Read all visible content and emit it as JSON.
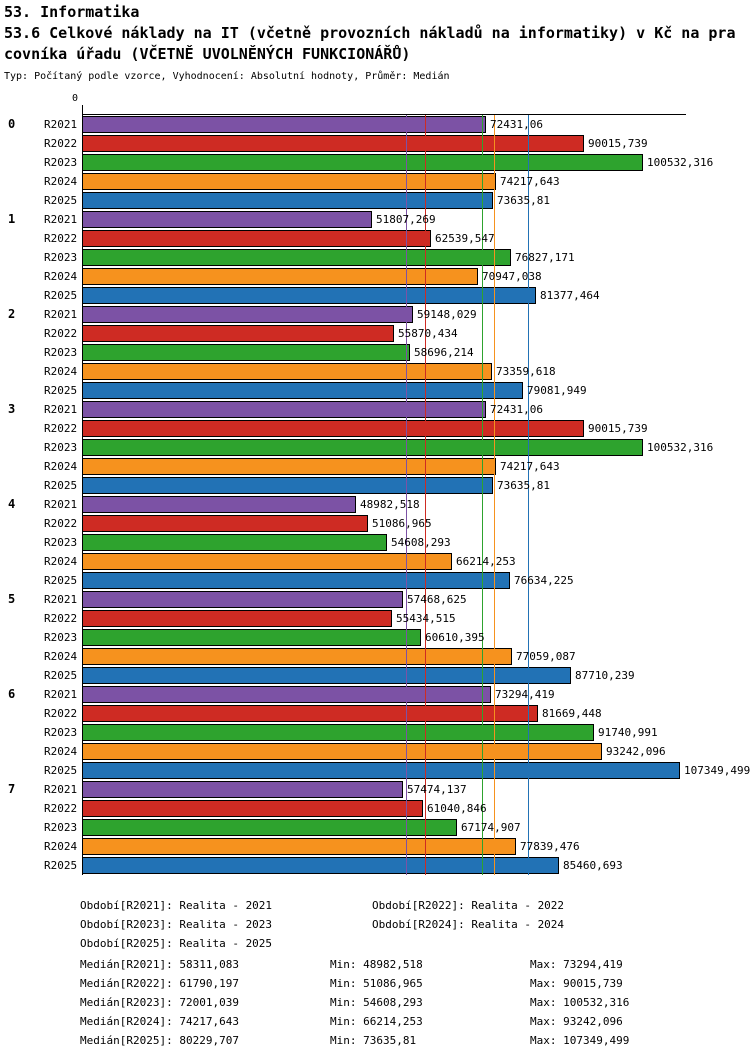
{
  "header": {
    "line1": "53. Informatika",
    "line2": "53.6 Celkové náklady na IT (včetně provozních nákladů na informatiky) v Kč na pracovníka úřadu (VČETNĚ UVOLNĚNÝCH FUNKCIONÁŘŮ)",
    "subtitle": "Typ: Počítaný podle vzorce, Vyhodnocení: Absolutní hodnoty, Průměr: Medián"
  },
  "chart_data": {
    "type": "bar",
    "orientation": "horizontal",
    "axis": {
      "min": 0,
      "max": 108000,
      "origin_label": "0"
    },
    "series": [
      "R2021",
      "R2022",
      "R2023",
      "R2024",
      "R2025"
    ],
    "series_colors": [
      "#7C52A5",
      "#CE2B23",
      "#2EA32E",
      "#F6921E",
      "#2272B5"
    ],
    "groups": [
      {
        "label": "0",
        "values": [
          72431.06,
          90015.739,
          100532.316,
          74217.643,
          73635.81
        ],
        "value_labels": [
          "72431,06",
          "90015,739",
          "100532,316",
          "74217,643",
          "73635,81"
        ]
      },
      {
        "label": "1",
        "values": [
          51807.269,
          62539.547,
          76827.171,
          70947.038,
          81377.464
        ],
        "value_labels": [
          "51807,269",
          "62539,547",
          "76827,171",
          "70947,038",
          "81377,464"
        ]
      },
      {
        "label": "2",
        "values": [
          59148.029,
          55870.434,
          58696.214,
          73359.618,
          79081.949
        ],
        "value_labels": [
          "59148,029",
          "55870,434",
          "58696,214",
          "73359,618",
          "79081,949"
        ]
      },
      {
        "label": "3",
        "values": [
          72431.06,
          90015.739,
          100532.316,
          74217.643,
          73635.81
        ],
        "value_labels": [
          "72431,06",
          "90015,739",
          "100532,316",
          "74217,643",
          "73635,81"
        ]
      },
      {
        "label": "4",
        "values": [
          48982.518,
          51086.965,
          54608.293,
          66214.253,
          76634.225
        ],
        "value_labels": [
          "48982,518",
          "51086,965",
          "54608,293",
          "66214,253",
          "76634,225"
        ]
      },
      {
        "label": "5",
        "values": [
          57468.625,
          55434.515,
          60610.395,
          77059.087,
          87710.239
        ],
        "value_labels": [
          "57468,625",
          "55434,515",
          "60610,395",
          "77059,087",
          "87710,239"
        ]
      },
      {
        "label": "6",
        "values": [
          73294.419,
          81669.448,
          91740.991,
          93242.096,
          107349.499
        ],
        "value_labels": [
          "73294,419",
          "81669,448",
          "91740,991",
          "93242,096",
          "107349,499"
        ]
      },
      {
        "label": "7",
        "values": [
          57474.137,
          61040.846,
          67174.907,
          77839.476,
          85460.693
        ],
        "value_labels": [
          "57474,137",
          "61040,846",
          "67174,907",
          "77839,476",
          "85460,693"
        ]
      }
    ],
    "medians": [
      58311.083,
      61790.197,
      72001.039,
      74217.643,
      80229.707
    ],
    "legend_position": "bottom",
    "grid": false
  },
  "footer": {
    "legend_rows": [
      [
        "Období[R2021]: Realita - 2021",
        "Období[R2022]: Realita - 2022"
      ],
      [
        "Období[R2023]: Realita - 2023",
        "Období[R2024]: Realita - 2024"
      ],
      [
        "Období[R2025]: Realita - 2025",
        ""
      ]
    ],
    "stats_rows": [
      [
        "Medián[R2021]: 58311,083",
        "Min: 48982,518",
        "Max: 73294,419"
      ],
      [
        "Medián[R2022]: 61790,197",
        "Min: 51086,965",
        "Max: 90015,739"
      ],
      [
        "Medián[R2023]: 72001,039",
        "Min: 54608,293",
        "Max: 100532,316"
      ],
      [
        "Medián[R2024]: 74217,643",
        "Min: 66214,253",
        "Max: 93242,096"
      ],
      [
        "Medián[R2025]: 80229,707",
        "Min: 73635,81",
        "Max: 107349,499"
      ]
    ]
  }
}
